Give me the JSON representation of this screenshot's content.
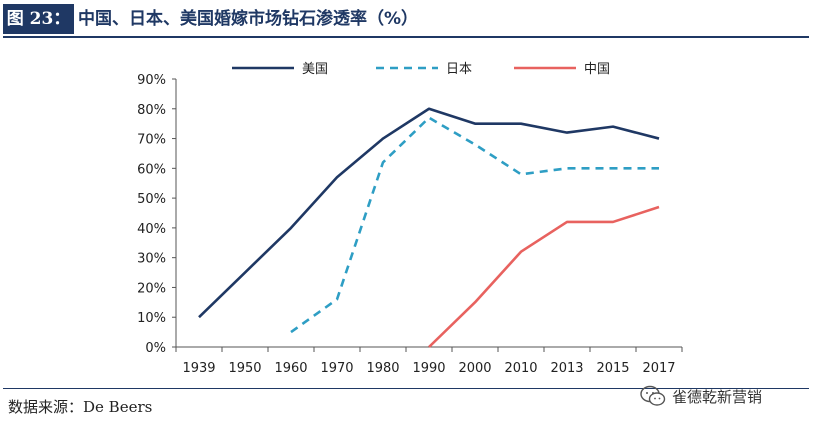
{
  "figure": {
    "label": "图 23：",
    "title": "中国、日本、美国婚嫁市场钻石渗透率（%）",
    "source": "数据来源：De Beers",
    "watermark": "雀德乾新营销"
  },
  "colors": {
    "navy": "#1f3864",
    "usa": "#1f3864",
    "japan": "#2e9ec4",
    "china": "#e8625f"
  },
  "chart_data": {
    "type": "line",
    "categories": [
      "1939",
      "1950",
      "1960",
      "1970",
      "1980",
      "1990",
      "2000",
      "2010",
      "2013",
      "2015",
      "2017"
    ],
    "yticks": [
      "0%",
      "10%",
      "20%",
      "30%",
      "40%",
      "50%",
      "60%",
      "70%",
      "80%",
      "90%"
    ],
    "ylim": [
      0,
      90
    ],
    "legend_position": "top",
    "series": [
      {
        "name": "美国",
        "style": "solid",
        "color": "#1f3864",
        "values": [
          10,
          25,
          40,
          57,
          70,
          80,
          75,
          75,
          72,
          74,
          70
        ]
      },
      {
        "name": "日本",
        "style": "dashed",
        "color": "#2e9ec4",
        "values": [
          null,
          null,
          5,
          16,
          62,
          77,
          68,
          58,
          60,
          60,
          60
        ]
      },
      {
        "name": "中国",
        "style": "solid",
        "color": "#e8625f",
        "values": [
          null,
          null,
          null,
          null,
          null,
          0,
          15,
          32,
          42,
          42,
          47
        ]
      }
    ]
  }
}
